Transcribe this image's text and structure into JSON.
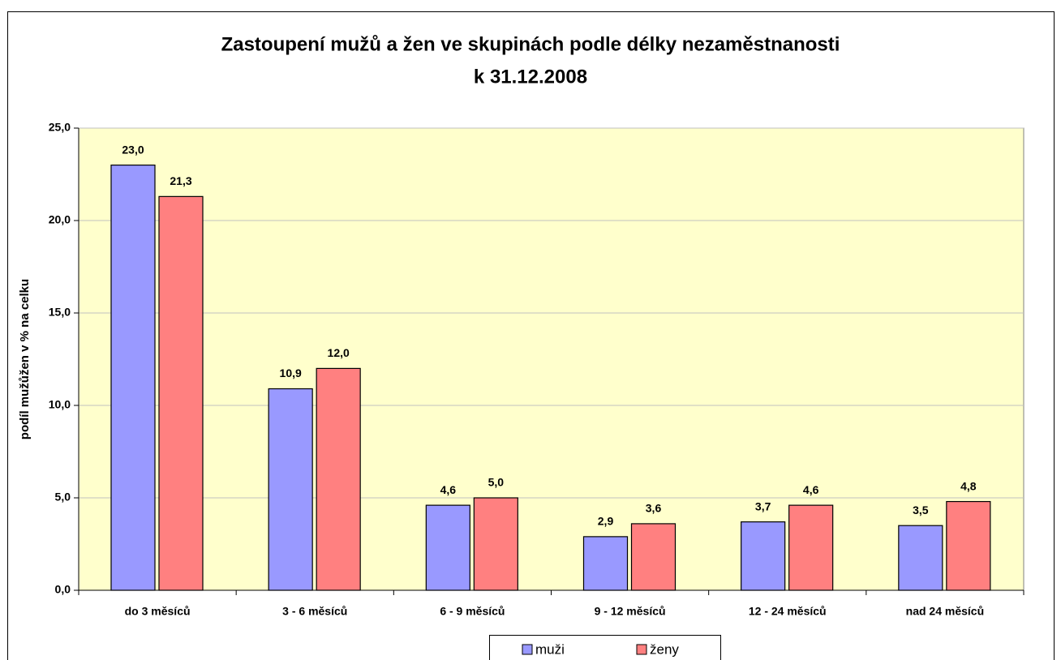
{
  "chart_data": {
    "type": "bar",
    "title": [
      "Zastoupení mužů a žen ve skupinách podle délky nezaměstnanosti",
      "k 31.12.2008"
    ],
    "ylabel": "podíl mužůžen v % na celku",
    "categories": [
      "do 3 měsíců",
      "3 - 6 měsíců",
      "6 - 9 měsíců",
      "9 - 12 měsíců",
      "12 - 24 měsíců",
      "nad 24 měsíců"
    ],
    "series": [
      {
        "name": "muži",
        "color": "#9999ff",
        "values": [
          23.0,
          10.9,
          4.6,
          2.9,
          3.7,
          3.5
        ],
        "value_labels": [
          "23,0",
          "10,9",
          "4,6",
          "2,9",
          "3,7",
          "3,5"
        ]
      },
      {
        "name": "ženy",
        "color": "#ff8080",
        "values": [
          21.3,
          12.0,
          5.0,
          3.6,
          4.6,
          4.8
        ],
        "value_labels": [
          "21,3",
          "12,0",
          "5,0",
          "3,6",
          "4,6",
          "4,8"
        ]
      }
    ],
    "ylim": [
      0,
      25
    ],
    "yticks": [
      {
        "value": 0,
        "label": "0,0"
      },
      {
        "value": 5,
        "label": "5,0"
      },
      {
        "value": 10,
        "label": "10,0"
      },
      {
        "value": 15,
        "label": "15,0"
      },
      {
        "value": 20,
        "label": "20,0"
      },
      {
        "value": 25,
        "label": "25,0"
      }
    ],
    "grid": true,
    "plot_background": "#ffffcc",
    "legend": "bottom"
  }
}
